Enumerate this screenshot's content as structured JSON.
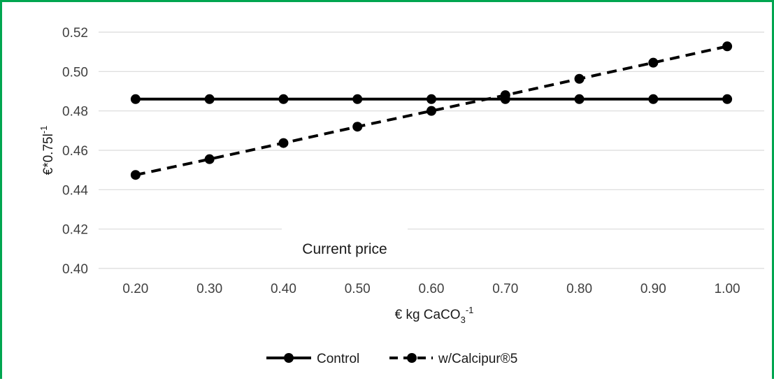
{
  "chart_data": {
    "type": "line",
    "xlabel_main": "€ kg CaCO",
    "xlabel_sub": "3",
    "xlabel_sup": "-1",
    "ylabel_main": "€*0.75l",
    "ylabel_sup": "-1",
    "ylim": [
      0.4,
      0.52
    ],
    "yticks": [
      "0.40",
      "0.42",
      "0.44",
      "0.46",
      "0.48",
      "0.50",
      "0.52"
    ],
    "categories": [
      "0.20",
      "0.30",
      "0.40",
      "0.50",
      "0.60",
      "0.70",
      "0.80",
      "0.90",
      "1.00"
    ],
    "grid": "horizontal",
    "legend_position": "bottom",
    "annotation": "Current price",
    "series": [
      {
        "name": "Control",
        "style": "solid",
        "color": "#000000",
        "values": [
          0.486,
          0.486,
          0.486,
          0.486,
          0.486,
          0.486,
          0.486,
          0.486,
          0.486
        ]
      },
      {
        "name": "w/Calcipur®5",
        "style": "dashed",
        "color": "#000000",
        "values": [
          0.4475,
          0.4555,
          0.4637,
          0.472,
          0.48,
          0.488,
          0.4963,
          0.5045,
          0.5128
        ]
      }
    ]
  }
}
